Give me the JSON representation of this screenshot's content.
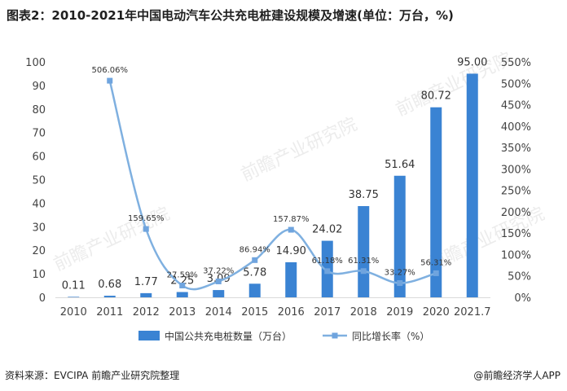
{
  "title": "图表2：2010-2021年中国电动汽车公共充电桩建设规模及增速(单位：万台，%)",
  "footer": {
    "source": "资料来源：EVCIPA 前瞻产业研究院整理",
    "brand": "@前瞻经济学人APP"
  },
  "watermark": "前瞻产业研究院",
  "colors": {
    "bar": "#3a83d3",
    "line": "#7fb0e0",
    "marker": "#6fa4de"
  },
  "chart_data": {
    "type": "bar+line",
    "categories": [
      "2010",
      "2011",
      "2012",
      "2013",
      "2014",
      "2015",
      "2016",
      "2017",
      "2018",
      "2019",
      "2020",
      "2021.7"
    ],
    "series": [
      {
        "name": "中国公共充电桩数量（万台）",
        "type": "bar",
        "axis": "left",
        "values": [
          0.11,
          0.68,
          1.77,
          2.25,
          3.09,
          5.78,
          14.9,
          24.02,
          38.75,
          51.64,
          80.72,
          95.0
        ],
        "labels": [
          "0.11",
          "0.68",
          "1.77",
          "2.25",
          "3.09",
          "5.78",
          "14.90",
          "24.02",
          "38.75",
          "51.64",
          "80.72",
          "95.00"
        ]
      },
      {
        "name": "同比增长率（%）",
        "type": "line",
        "axis": "right",
        "values": [
          null,
          506.06,
          159.65,
          27.59,
          37.22,
          86.94,
          157.87,
          61.18,
          61.31,
          33.27,
          56.31,
          null
        ],
        "labels": [
          "",
          "506.06%",
          "159.65%",
          "27.59%",
          "37.22%",
          "86.94%",
          "157.87%",
          "61.18%",
          "61.31%",
          "33.27%",
          "56.31%",
          ""
        ]
      }
    ],
    "y_left": {
      "min": 0,
      "max": 100,
      "ticks": [
        "0",
        "10",
        "20",
        "30",
        "40",
        "50",
        "60",
        "70",
        "80",
        "90",
        "100"
      ]
    },
    "y_right": {
      "min": 0,
      "max": 550,
      "ticks": [
        "0%",
        "50%",
        "100%",
        "150%",
        "200%",
        "250%",
        "300%",
        "350%",
        "400%",
        "450%",
        "500%",
        "550%"
      ]
    },
    "legend": [
      {
        "label": "中国公共充电桩数量（万台）",
        "kind": "bar"
      },
      {
        "label": "同比增长率（%）",
        "kind": "line"
      }
    ],
    "legend_position": "bottom"
  }
}
